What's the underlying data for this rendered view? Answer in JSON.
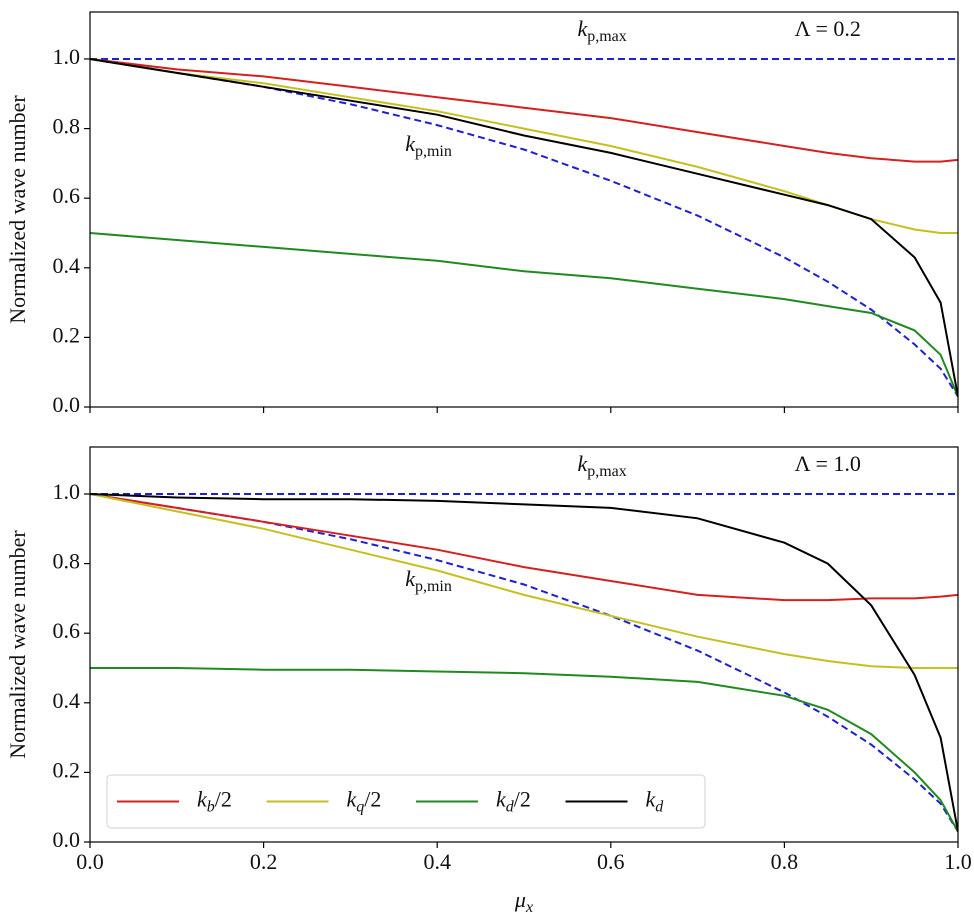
{
  "chart_data": [
    {
      "type": "line",
      "annotations": [
        "kp,max",
        "Λ = 0.2",
        "kp,min"
      ],
      "ylabel": "Normalized wave number",
      "x": [
        0,
        0.1,
        0.2,
        0.3,
        0.4,
        0.5,
        0.6,
        0.7,
        0.8,
        0.85,
        0.9,
        0.95,
        0.98,
        1.0
      ],
      "xlim": [
        0,
        1
      ],
      "xticks": [
        0,
        0.2,
        0.4,
        0.6,
        0.8,
        1.0
      ],
      "ylim": [
        0,
        1.135
      ],
      "yticks": [
        {
          "value": 0,
          "label": "0.0"
        },
        {
          "value": 0.2,
          "label": "0.2"
        },
        {
          "value": 0.4,
          "label": "0.4"
        },
        {
          "value": 0.6,
          "label": "0.6"
        },
        {
          "value": 0.8,
          "label": "0.8"
        },
        {
          "value": 1,
          "label": "1.0"
        }
      ],
      "series": [
        {
          "color": "#1f1fd6",
          "dash": true,
          "values": [
            1,
            1,
            1,
            1,
            1,
            1,
            1,
            1,
            1,
            1,
            1,
            1,
            1,
            1
          ]
        },
        {
          "color": "#1f1fd6",
          "dash": true,
          "values": [
            1.0,
            0.96,
            0.92,
            0.87,
            0.81,
            0.74,
            0.65,
            0.55,
            0.43,
            0.36,
            0.28,
            0.18,
            0.11,
            0.03
          ]
        },
        {
          "color": "#d62020",
          "values": [
            1.0,
            0.97,
            0.95,
            0.92,
            0.89,
            0.86,
            0.83,
            0.79,
            0.75,
            0.73,
            0.715,
            0.705,
            0.705,
            0.71
          ]
        },
        {
          "color": "#c4c020",
          "values": [
            1.0,
            0.96,
            0.93,
            0.89,
            0.85,
            0.8,
            0.75,
            0.69,
            0.62,
            0.58,
            0.54,
            0.51,
            0.5,
            0.5
          ]
        },
        {
          "color": "#208a20",
          "values": [
            0.5,
            0.48,
            0.46,
            0.44,
            0.42,
            0.39,
            0.37,
            0.34,
            0.31,
            0.29,
            0.27,
            0.22,
            0.15,
            0.03
          ]
        },
        {
          "color": "#000000",
          "values": [
            1.0,
            0.96,
            0.92,
            0.88,
            0.84,
            0.78,
            0.73,
            0.67,
            0.61,
            0.58,
            0.54,
            0.43,
            0.3,
            0.03
          ]
        }
      ]
    },
    {
      "type": "line",
      "annotations": [
        "kp,max",
        "Λ = 1.0",
        "kp,min"
      ],
      "ylabel": "Normalized wave number",
      "xlabel": "μx",
      "legend": "lower left",
      "x": [
        0,
        0.1,
        0.2,
        0.3,
        0.4,
        0.5,
        0.6,
        0.7,
        0.8,
        0.85,
        0.9,
        0.95,
        0.98,
        1.0
      ],
      "xlim": [
        0,
        1
      ],
      "xticks": [
        {
          "value": 0,
          "label": "0.0"
        },
        {
          "value": 0.2,
          "label": "0.2"
        },
        {
          "value": 0.4,
          "label": "0.4"
        },
        {
          "value": 0.6,
          "label": "0.6"
        },
        {
          "value": 0.8,
          "label": "0.8"
        },
        {
          "value": 1,
          "label": "1.0"
        }
      ],
      "ylim": [
        0,
        1.135
      ],
      "yticks": [
        {
          "value": 0,
          "label": "0.0"
        },
        {
          "value": 0.2,
          "label": "0.2"
        },
        {
          "value": 0.4,
          "label": "0.4"
        },
        {
          "value": 0.6,
          "label": "0.6"
        },
        {
          "value": 0.8,
          "label": "0.8"
        },
        {
          "value": 1,
          "label": "1.0"
        }
      ],
      "series": [
        {
          "color": "#1f1fd6",
          "dash": true,
          "values": [
            1,
            1,
            1,
            1,
            1,
            1,
            1,
            1,
            1,
            1,
            1,
            1,
            1,
            1
          ]
        },
        {
          "color": "#1f1fd6",
          "dash": true,
          "values": [
            1.0,
            0.96,
            0.92,
            0.87,
            0.81,
            0.74,
            0.65,
            0.55,
            0.43,
            0.36,
            0.28,
            0.18,
            0.11,
            0.03
          ]
        },
        {
          "name": "kb/2",
          "color": "#d62020",
          "values": [
            1.0,
            0.96,
            0.92,
            0.88,
            0.84,
            0.79,
            0.75,
            0.71,
            0.695,
            0.695,
            0.7,
            0.7,
            0.705,
            0.71
          ]
        },
        {
          "name": "kq/2",
          "color": "#c4c020",
          "values": [
            1.0,
            0.95,
            0.9,
            0.84,
            0.78,
            0.71,
            0.65,
            0.59,
            0.54,
            0.52,
            0.505,
            0.5,
            0.5,
            0.5
          ]
        },
        {
          "name": "kd/2",
          "color": "#208a20",
          "values": [
            0.5,
            0.5,
            0.495,
            0.495,
            0.49,
            0.485,
            0.475,
            0.46,
            0.42,
            0.38,
            0.31,
            0.2,
            0.12,
            0.03
          ]
        },
        {
          "name": "kd",
          "color": "#000000",
          "values": [
            1.0,
            0.99,
            0.985,
            0.985,
            0.98,
            0.97,
            0.96,
            0.93,
            0.86,
            0.8,
            0.68,
            0.48,
            0.3,
            0.03
          ]
        }
      ]
    }
  ]
}
